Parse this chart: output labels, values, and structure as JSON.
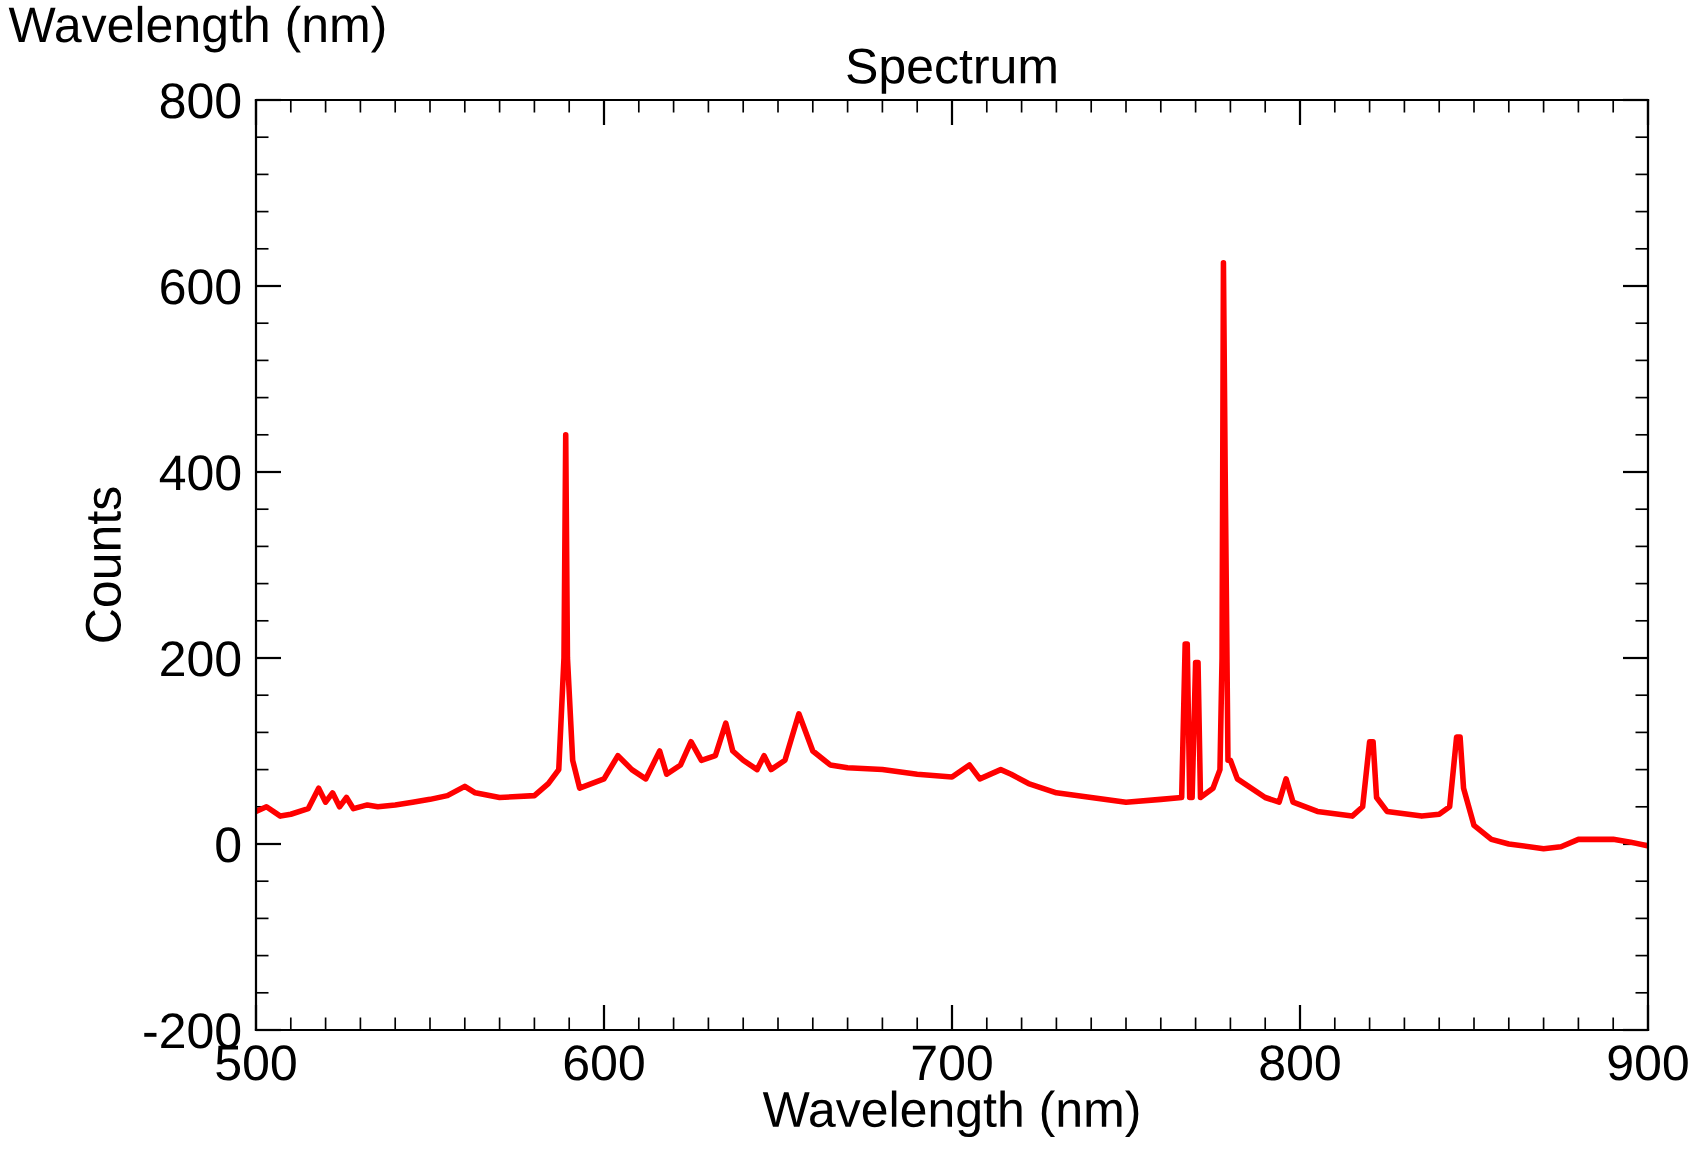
{
  "chart_data": {
    "type": "line",
    "title": "Spectrum",
    "xlabel": "Wavelength (nm)",
    "ylabel": "Counts",
    "annotations": [
      "Wavelength (nm)"
    ],
    "xlim": [
      500,
      900
    ],
    "xticks": [
      500,
      600,
      700,
      800,
      900
    ],
    "ylim": [
      -200,
      800
    ],
    "yticks": [
      {
        "value": -200,
        "label": "-200"
      },
      0,
      200,
      400,
      600,
      800
    ],
    "grid": false,
    "legend": false,
    "marker": "none",
    "line_style": "solid",
    "series": [
      {
        "color": "#ff0000",
        "x": [
          500,
          503,
          507,
          510,
          515,
          518,
          520,
          522,
          524,
          526,
          528,
          532,
          535,
          540,
          545,
          550,
          555,
          560,
          563,
          570,
          580,
          584,
          587,
          588.5,
          589,
          589.5,
          591,
          593,
          600,
          604,
          608,
          612,
          616,
          618,
          622,
          625,
          628,
          632,
          635,
          637,
          640,
          644,
          646,
          648,
          652,
          656,
          660,
          665,
          670,
          680,
          690,
          700,
          705,
          708,
          714,
          717,
          722,
          730,
          740,
          750,
          760,
          766,
          767,
          767.6,
          768.3,
          769,
          770,
          770.7,
          771.4,
          775,
          777,
          777.6,
          778,
          778.5,
          779.3,
          780,
          782,
          790,
          794,
          796,
          798,
          805,
          815,
          818,
          820,
          821,
          822,
          825,
          835,
          840,
          843,
          845,
          846,
          847,
          850,
          855,
          860,
          870,
          875,
          880,
          890,
          895,
          900
        ],
        "values": [
          35,
          40,
          30,
          32,
          38,
          60,
          45,
          55,
          40,
          50,
          38,
          42,
          40,
          42,
          45,
          48,
          52,
          62,
          55,
          50,
          52,
          65,
          80,
          200,
          440,
          200,
          90,
          60,
          70,
          95,
          80,
          70,
          100,
          75,
          85,
          110,
          90,
          95,
          130,
          100,
          90,
          80,
          95,
          80,
          90,
          140,
          100,
          85,
          82,
          80,
          75,
          72,
          85,
          70,
          80,
          75,
          65,
          55,
          50,
          45,
          48,
          50,
          215,
          215,
          50,
          50,
          195,
          195,
          50,
          60,
          80,
          200,
          625,
          400,
          90,
          90,
          70,
          50,
          45,
          70,
          45,
          35,
          30,
          40,
          110,
          110,
          50,
          35,
          30,
          32,
          40,
          115,
          115,
          60,
          20,
          5,
          0,
          -5,
          -3,
          5,
          5,
          2,
          -2
        ]
      }
    ]
  }
}
